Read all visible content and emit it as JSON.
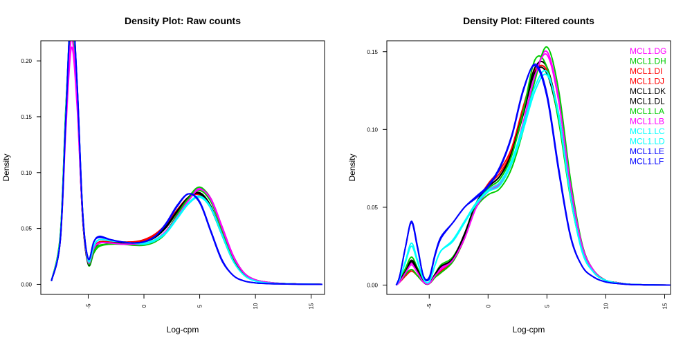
{
  "chart_data": [
    {
      "type": "line",
      "title": "Density Plot: Raw counts",
      "xlabel": "Log-cpm",
      "ylabel": "Density",
      "xlim": [
        -9.25,
        16.2
      ],
      "ylim": [
        -0.009,
        0.218
      ],
      "xticks": [
        -5,
        0,
        5,
        10,
        15
      ],
      "yticks": [
        "0.00",
        "0.05",
        "0.10",
        "0.15",
        "0.20"
      ],
      "grid": false,
      "x": [
        -8.3,
        -7.5,
        -7,
        -6.5,
        -6,
        -5.5,
        -5,
        -4.5,
        -4,
        -3,
        -2,
        -1,
        0,
        1,
        2,
        3,
        4,
        5,
        6,
        7,
        8,
        9,
        10,
        11,
        12,
        14,
        16
      ],
      "series": [
        {
          "color": "#FF00FF",
          "values": [
            0.003,
            0.04,
            0.14,
            0.212,
            0.16,
            0.06,
            0.02,
            0.033,
            0.038,
            0.037,
            0.036,
            0.036,
            0.037,
            0.04,
            0.048,
            0.062,
            0.076,
            0.086,
            0.077,
            0.052,
            0.026,
            0.01,
            0.004,
            0.002,
            0.001,
            0.0002,
            0
          ]
        },
        {
          "color": "#00CD00",
          "values": [
            0.003,
            0.045,
            0.16,
            0.235,
            0.175,
            0.065,
            0.018,
            0.028,
            0.034,
            0.036,
            0.036,
            0.035,
            0.035,
            0.038,
            0.046,
            0.062,
            0.078,
            0.087,
            0.076,
            0.05,
            0.025,
            0.01,
            0.004,
            0.002,
            0.001,
            0.0002,
            0
          ]
        },
        {
          "color": "#FF0000",
          "values": [
            0.003,
            0.04,
            0.15,
            0.24,
            0.17,
            0.06,
            0.019,
            0.032,
            0.038,
            0.038,
            0.038,
            0.038,
            0.04,
            0.045,
            0.054,
            0.067,
            0.078,
            0.08,
            0.068,
            0.045,
            0.022,
            0.009,
            0.0035,
            0.0015,
            0.0008,
            0.0002,
            0
          ]
        },
        {
          "color": "#FF0000",
          "values": [
            0.003,
            0.041,
            0.152,
            0.242,
            0.172,
            0.061,
            0.019,
            0.031,
            0.037,
            0.038,
            0.038,
            0.038,
            0.039,
            0.044,
            0.053,
            0.066,
            0.078,
            0.082,
            0.07,
            0.046,
            0.023,
            0.009,
            0.0035,
            0.0015,
            0.0008,
            0.0002,
            0
          ]
        },
        {
          "color": "#000000",
          "values": [
            0.003,
            0.042,
            0.155,
            0.245,
            0.17,
            0.06,
            0.018,
            0.03,
            0.037,
            0.037,
            0.037,
            0.037,
            0.038,
            0.043,
            0.052,
            0.066,
            0.078,
            0.081,
            0.068,
            0.044,
            0.021,
            0.009,
            0.0035,
            0.0015,
            0.0008,
            0.0002,
            0
          ]
        },
        {
          "color": "#000000",
          "values": [
            0.003,
            0.042,
            0.155,
            0.244,
            0.171,
            0.061,
            0.019,
            0.031,
            0.037,
            0.037,
            0.037,
            0.037,
            0.038,
            0.042,
            0.051,
            0.065,
            0.077,
            0.082,
            0.07,
            0.045,
            0.022,
            0.009,
            0.0035,
            0.0015,
            0.0008,
            0.0002,
            0
          ]
        },
        {
          "color": "#00CD00",
          "values": [
            0.003,
            0.044,
            0.158,
            0.238,
            0.174,
            0.064,
            0.019,
            0.03,
            0.035,
            0.036,
            0.036,
            0.036,
            0.036,
            0.039,
            0.047,
            0.063,
            0.077,
            0.084,
            0.074,
            0.049,
            0.024,
            0.01,
            0.004,
            0.002,
            0.001,
            0.0002,
            0
          ]
        },
        {
          "color": "#FF00FF",
          "values": [
            0.003,
            0.041,
            0.145,
            0.22,
            0.163,
            0.061,
            0.02,
            0.032,
            0.037,
            0.037,
            0.036,
            0.036,
            0.036,
            0.039,
            0.047,
            0.061,
            0.075,
            0.085,
            0.076,
            0.051,
            0.025,
            0.01,
            0.004,
            0.002,
            0.001,
            0.0002,
            0
          ]
        },
        {
          "color": "#00FFFF",
          "values": [
            0.003,
            0.042,
            0.155,
            0.25,
            0.18,
            0.065,
            0.021,
            0.034,
            0.04,
            0.039,
            0.038,
            0.037,
            0.036,
            0.039,
            0.046,
            0.059,
            0.072,
            0.078,
            0.068,
            0.044,
            0.021,
            0.008,
            0.003,
            0.0013,
            0.0007,
            0.0002,
            0
          ]
        },
        {
          "color": "#00FFFF",
          "values": [
            0.003,
            0.042,
            0.154,
            0.248,
            0.179,
            0.064,
            0.022,
            0.035,
            0.04,
            0.039,
            0.038,
            0.037,
            0.037,
            0.04,
            0.047,
            0.06,
            0.073,
            0.079,
            0.069,
            0.045,
            0.021,
            0.008,
            0.003,
            0.0013,
            0.0007,
            0.0002,
            0
          ]
        },
        {
          "color": "#0000FF",
          "values": [
            0.003,
            0.04,
            0.15,
            0.25,
            0.18,
            0.065,
            0.023,
            0.038,
            0.043,
            0.04,
            0.038,
            0.037,
            0.038,
            0.043,
            0.054,
            0.07,
            0.081,
            0.074,
            0.048,
            0.022,
            0.008,
            0.003,
            0.0013,
            0.0007,
            0.0004,
            0.0001,
            0
          ]
        },
        {
          "color": "#0000FF",
          "values": [
            0.003,
            0.04,
            0.151,
            0.251,
            0.181,
            0.065,
            0.023,
            0.038,
            0.042,
            0.04,
            0.038,
            0.037,
            0.038,
            0.043,
            0.055,
            0.071,
            0.081,
            0.073,
            0.047,
            0.021,
            0.008,
            0.003,
            0.0013,
            0.0007,
            0.0004,
            0.0001,
            0
          ]
        }
      ]
    },
    {
      "type": "line",
      "title": "Density Plot: Filtered counts",
      "xlabel": "Log-cpm",
      "ylabel": "Density",
      "xlim": [
        -8.6,
        15.5
      ],
      "ylim": [
        -0.006,
        0.157
      ],
      "xticks": [
        -5,
        0,
        5,
        10,
        15
      ],
      "yticks": [
        "0.00",
        "0.05",
        "0.10",
        "0.15"
      ],
      "grid": false,
      "legend_position": "top-right",
      "x": [
        -7.8,
        -7.5,
        -7,
        -6.5,
        -6,
        -5.5,
        -5,
        -4.5,
        -4,
        -3,
        -2,
        -1,
        0,
        1,
        2,
        3,
        4,
        5,
        6,
        7,
        8,
        9,
        10,
        11,
        12,
        14,
        15.5
      ],
      "series": [
        {
          "name": "MCL1.DG",
          "color": "#FF00FF",
          "values": [
            0,
            0.002,
            0.008,
            0.014,
            0.009,
            0.002,
            0.001,
            0.006,
            0.011,
            0.016,
            0.03,
            0.05,
            0.06,
            0.065,
            0.078,
            0.105,
            0.135,
            0.15,
            0.12,
            0.065,
            0.025,
            0.009,
            0.003,
            0.0015,
            0.0005,
            0.0001,
            0
          ]
        },
        {
          "name": "MCL1.DH",
          "color": "#00CD00",
          "values": [
            0,
            0.003,
            0.011,
            0.018,
            0.011,
            0.003,
            0.001,
            0.007,
            0.013,
            0.018,
            0.032,
            0.05,
            0.058,
            0.062,
            0.075,
            0.1,
            0.132,
            0.153,
            0.125,
            0.068,
            0.026,
            0.009,
            0.003,
            0.0015,
            0.0005,
            0.0001,
            0
          ]
        },
        {
          "name": "MCL1.DI",
          "color": "#FF0000",
          "values": [
            0,
            0.002,
            0.006,
            0.009,
            0.006,
            0.002,
            0.001,
            0.005,
            0.008,
            0.015,
            0.03,
            0.052,
            0.065,
            0.074,
            0.088,
            0.115,
            0.138,
            0.138,
            0.11,
            0.06,
            0.024,
            0.009,
            0.003,
            0.0015,
            0.0005,
            0.0001,
            0
          ]
        },
        {
          "name": "MCL1.DJ",
          "color": "#FF0000",
          "values": [
            0,
            0.002,
            0.006,
            0.01,
            0.006,
            0.002,
            0.001,
            0.005,
            0.009,
            0.016,
            0.031,
            0.052,
            0.064,
            0.072,
            0.086,
            0.113,
            0.14,
            0.14,
            0.108,
            0.058,
            0.023,
            0.009,
            0.003,
            0.0015,
            0.0005,
            0.0001,
            0
          ]
        },
        {
          "name": "MCL1.DK",
          "color": "#000000",
          "values": [
            0,
            0.003,
            0.009,
            0.015,
            0.009,
            0.002,
            0.001,
            0.007,
            0.012,
            0.017,
            0.032,
            0.052,
            0.063,
            0.07,
            0.085,
            0.112,
            0.14,
            0.14,
            0.108,
            0.058,
            0.023,
            0.009,
            0.003,
            0.0015,
            0.0005,
            0.0001,
            0
          ]
        },
        {
          "name": "MCL1.DL",
          "color": "#000000",
          "values": [
            0,
            0.003,
            0.009,
            0.016,
            0.01,
            0.002,
            0.001,
            0.007,
            0.012,
            0.017,
            0.033,
            0.053,
            0.063,
            0.07,
            0.084,
            0.11,
            0.137,
            0.136,
            0.106,
            0.057,
            0.022,
            0.008,
            0.003,
            0.0015,
            0.0005,
            0.0001,
            0
          ]
        },
        {
          "name": "MCL1.LA",
          "color": "#00CD00",
          "values": [
            0,
            0.002,
            0.007,
            0.01,
            0.006,
            0.002,
            0.001,
            0.005,
            0.008,
            0.015,
            0.03,
            0.051,
            0.062,
            0.068,
            0.083,
            0.112,
            0.145,
            0.14,
            0.105,
            0.056,
            0.022,
            0.008,
            0.003,
            0.0015,
            0.0005,
            0.0001,
            0
          ]
        },
        {
          "name": "MCL1.LB",
          "color": "#FF00FF",
          "values": [
            0,
            0.002,
            0.008,
            0.013,
            0.008,
            0.002,
            0.001,
            0.006,
            0.01,
            0.016,
            0.03,
            0.05,
            0.061,
            0.066,
            0.079,
            0.104,
            0.135,
            0.148,
            0.118,
            0.064,
            0.025,
            0.009,
            0.003,
            0.0015,
            0.0005,
            0.0001,
            0
          ]
        },
        {
          "name": "MCL1.LC",
          "color": "#00FFFF",
          "values": [
            0,
            0.004,
            0.016,
            0.027,
            0.016,
            0.004,
            0.002,
            0.013,
            0.022,
            0.028,
            0.04,
            0.052,
            0.06,
            0.064,
            0.078,
            0.1,
            0.125,
            0.135,
            0.11,
            0.058,
            0.022,
            0.008,
            0.003,
            0.0013,
            0.0005,
            0.0001,
            0
          ]
        },
        {
          "name": "MCL1.LD",
          "color": "#00FFFF",
          "values": [
            0,
            0.004,
            0.015,
            0.025,
            0.015,
            0.004,
            0.002,
            0.013,
            0.022,
            0.029,
            0.041,
            0.053,
            0.061,
            0.066,
            0.08,
            0.103,
            0.128,
            0.137,
            0.108,
            0.057,
            0.021,
            0.008,
            0.003,
            0.0013,
            0.0005,
            0.0001,
            0
          ]
        },
        {
          "name": "MCL1.LE",
          "color": "#0000FF",
          "values": [
            0,
            0.006,
            0.025,
            0.041,
            0.025,
            0.006,
            0.005,
            0.02,
            0.031,
            0.04,
            0.05,
            0.056,
            0.063,
            0.075,
            0.095,
            0.125,
            0.142,
            0.123,
            0.075,
            0.032,
            0.012,
            0.005,
            0.002,
            0.001,
            0.0004,
            0.0001,
            0
          ]
        },
        {
          "name": "MCL1.LF",
          "color": "#0000FF",
          "values": [
            0,
            0.006,
            0.025,
            0.04,
            0.024,
            0.006,
            0.004,
            0.019,
            0.03,
            0.04,
            0.05,
            0.057,
            0.064,
            0.076,
            0.096,
            0.126,
            0.141,
            0.121,
            0.073,
            0.031,
            0.012,
            0.005,
            0.002,
            0.001,
            0.0004,
            0.0001,
            0
          ]
        }
      ]
    }
  ]
}
